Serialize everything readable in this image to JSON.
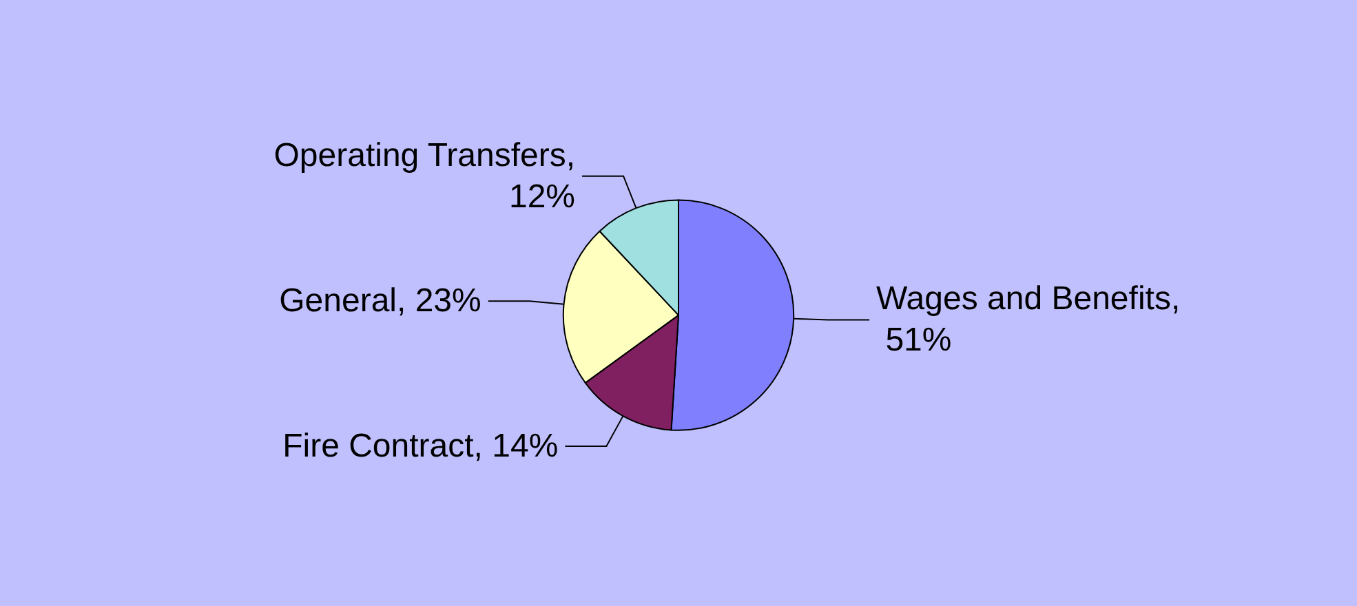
{
  "chart_data": {
    "type": "pie",
    "categories": [
      "Wages and Benefits, 51%",
      "Fire Contract, 14%",
      "General, 23%",
      "Operating Transfers, 12%"
    ],
    "values": [
      51,
      14,
      23,
      12
    ],
    "colors": [
      "#8080ff",
      "#802060",
      "#ffffc0",
      "#a0e0e0"
    ],
    "legend": false
  }
}
